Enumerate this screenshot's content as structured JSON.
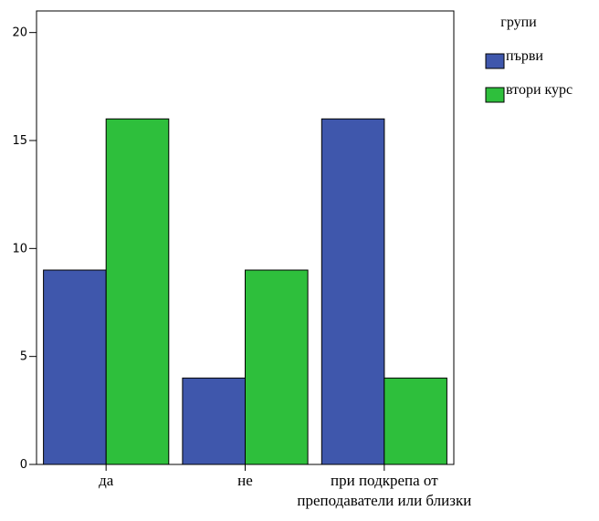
{
  "chart_data": {
    "type": "bar",
    "categories": [
      [
        "да"
      ],
      [
        "не"
      ],
      [
        "при подкрепа от",
        "преподаватели или близки"
      ]
    ],
    "series": [
      {
        "name": "първи",
        "values": [
          9,
          4,
          16
        ],
        "color": "#3f57ac"
      },
      {
        "name": "втори курс",
        "values": [
          16,
          9,
          4
        ],
        "color": "#2ebf3c"
      }
    ],
    "ylim": [
      0,
      21
    ],
    "yticks": [
      0,
      5,
      10,
      15,
      20
    ],
    "legend": {
      "title": "групи",
      "placement": "top-right"
    },
    "grid": false
  }
}
